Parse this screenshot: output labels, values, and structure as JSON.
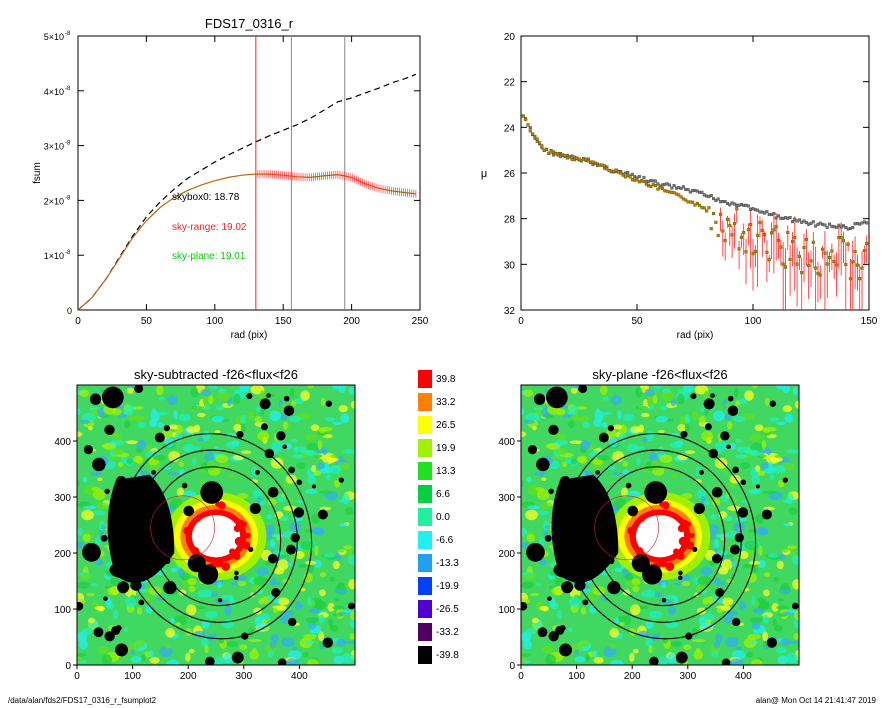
{
  "colors": {
    "outer": "#000000",
    "range": "#ff2020",
    "plane": "#00c800",
    "orange_point": "#e07000",
    "black_hole": "#000000",
    "center": "#ffffff"
  },
  "chart_data": [
    {
      "type": "line",
      "title": "FDS17_0316_r",
      "xlabel": "rad (pix)",
      "ylabel": "fsum",
      "xlim": [
        0,
        250
      ],
      "ylim": [
        0,
        5e-08
      ],
      "xticks": [
        "0",
        "50",
        "100",
        "150",
        "200",
        "250"
      ],
      "yticks": [
        "0",
        "1×10",
        "2×10",
        "3×10",
        "4×10",
        "5×10"
      ],
      "ytick_exp": "-8",
      "vlines": [
        {
          "x": 130,
          "color": "red"
        },
        {
          "x": 156,
          "color": "gray"
        },
        {
          "x": 195,
          "color": "gray"
        }
      ],
      "series": [
        {
          "style": "dashed",
          "color": "black",
          "x": [
            0,
            10,
            20,
            30,
            40,
            50,
            60,
            70,
            80,
            90,
            100,
            110,
            120,
            130,
            140,
            150,
            160,
            170,
            180,
            190,
            200,
            210,
            220,
            230,
            240,
            247
          ],
          "y": [
            0,
            2.2e-09,
            5.5e-09,
            9.5e-09,
            1.35e-08,
            1.7e-08,
            1.97e-08,
            2.2e-08,
            2.4e-08,
            2.55e-08,
            2.7e-08,
            2.83e-08,
            2.95e-08,
            3.07e-08,
            3.18e-08,
            3.28e-08,
            3.38e-08,
            3.5e-08,
            3.65e-08,
            3.8e-08,
            3.87e-08,
            3.96e-08,
            4.05e-08,
            4.15e-08,
            4.23e-08,
            4.3e-08
          ]
        },
        {
          "style": "solid",
          "color": "orange",
          "x": [
            0,
            10,
            20,
            30,
            40,
            50,
            60,
            70,
            80,
            90,
            100,
            110,
            120,
            130,
            140,
            150,
            160,
            170,
            180,
            190,
            200,
            210,
            220,
            230,
            240,
            247
          ],
          "y": [
            0,
            2.2e-09,
            5.5e-09,
            9.3e-09,
            1.32e-08,
            1.63e-08,
            1.87e-08,
            2.05e-08,
            2.18e-08,
            2.28e-08,
            2.36e-08,
            2.42e-08,
            2.46e-08,
            2.48e-08,
            2.48e-08,
            2.46e-08,
            2.43e-08,
            2.42e-08,
            2.45e-08,
            2.47e-08,
            2.42e-08,
            2.3e-08,
            2.22e-08,
            2.17e-08,
            2.14e-08,
            2.12e-08
          ]
        }
      ],
      "annotations": [
        {
          "text": "skybox0: 18.78",
          "color": "black"
        },
        {
          "text": "sky-range: 19.02",
          "color": "red"
        },
        {
          "text": "sky-plane: 19.01",
          "color": "green"
        }
      ]
    },
    {
      "type": "scatter",
      "title": "",
      "xlabel": "rad (pix)",
      "ylabel": "μ",
      "xlim": [
        0,
        150
      ],
      "ylim": [
        32,
        20
      ],
      "xticks": [
        "0",
        "50",
        "100",
        "150"
      ],
      "yticks": [
        "20",
        "22",
        "24",
        "26",
        "28",
        "30",
        "32"
      ],
      "profile_knots": {
        "x": [
          0,
          5,
          10,
          20,
          30,
          40,
          50,
          60,
          70,
          80,
          90,
          100,
          110,
          120,
          130,
          140,
          150
        ],
        "y_black": [
          23.3,
          24.3,
          25.0,
          25.3,
          25.5,
          25.9,
          26.2,
          26.5,
          26.7,
          27.0,
          27.3,
          27.6,
          27.9,
          28.1,
          28.3,
          28.4,
          28.2
        ],
        "y_orange": [
          23.3,
          24.3,
          25.0,
          25.3,
          25.5,
          25.9,
          26.3,
          26.7,
          27.1,
          27.6,
          28.2,
          28.8,
          29.2,
          29.5,
          29.8,
          29.7,
          29.9
        ]
      }
    },
    {
      "type": "heatmap",
      "title": "sky-subtracted -f26<flux<f26",
      "xlim": [
        0,
        500
      ],
      "ylim": [
        0,
        500
      ],
      "xticks": [
        "0",
        "100",
        "200",
        "300",
        "400"
      ],
      "yticks": [
        "0",
        "100",
        "200",
        "300",
        "400"
      ],
      "ellipses": [
        {
          "rx": 170,
          "ry": 185
        },
        {
          "rx": 145,
          "ry": 155
        },
        {
          "rx": 115,
          "ry": 125
        }
      ]
    },
    {
      "type": "heatmap",
      "title": "sky-plane -f26<flux<f26",
      "xlim": [
        0,
        500
      ],
      "ylim": [
        0,
        500
      ],
      "xticks": [
        "0",
        "100",
        "200",
        "300",
        "400"
      ],
      "yticks": [
        "0",
        "100",
        "200",
        "300",
        "400"
      ],
      "ellipses": [
        {
          "rx": 170,
          "ry": 185
        },
        {
          "rx": 145,
          "ry": 155
        },
        {
          "rx": 115,
          "ry": 125
        }
      ]
    }
  ],
  "colorbar": {
    "labels": [
      "39.8",
      "33.2",
      "26.5",
      "19.9",
      "13.3",
      "6.6",
      "0.0",
      "-6.6",
      "-13.3",
      "-19.9",
      "-26.5",
      "-33.2",
      "-39.8"
    ],
    "colors": [
      "#ff0000",
      "#ff8000",
      "#ffff00",
      "#a0f000",
      "#20e020",
      "#00d040",
      "#20f0a0",
      "#20f0f0",
      "#20a0f0",
      "#0040ff",
      "#5000d0",
      "#500060",
      "#000000"
    ]
  },
  "footer": {
    "left": "/data/alan/fds2/FDS17_0316_r_fsumplot2",
    "right": "alan@  Mon Oct 14 21:41:47 2019"
  }
}
